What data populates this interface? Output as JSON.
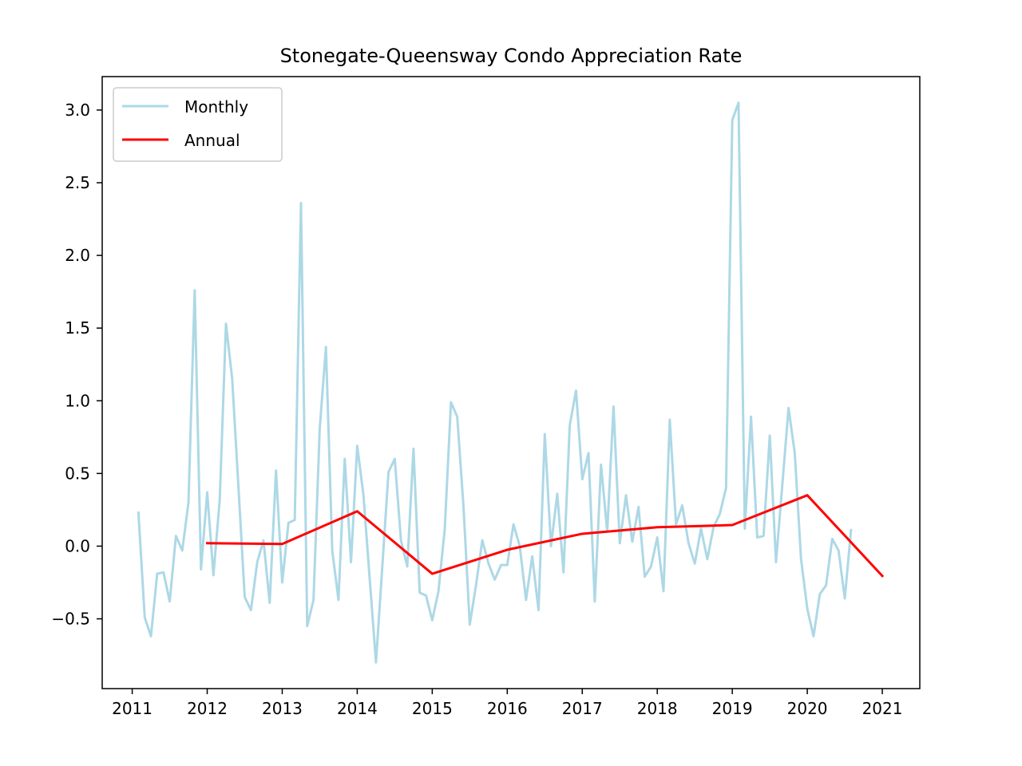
{
  "chart_data": {
    "type": "line",
    "title": "Stonegate-Queensway Condo Appreciation Rate",
    "xlabel": "",
    "ylabel": "",
    "xlim": [
      2010.6,
      2021.5
    ],
    "ylim": [
      -0.98,
      3.23
    ],
    "x_ticks": [
      2011,
      2012,
      2013,
      2014,
      2015,
      2016,
      2017,
      2018,
      2019,
      2020,
      2021
    ],
    "y_ticks": [
      -0.5,
      0.0,
      0.5,
      1.0,
      1.5,
      2.0,
      2.5,
      3.0
    ],
    "y_tick_labels": [
      "−0.5",
      "0.0",
      "0.5",
      "1.0",
      "1.5",
      "2.0",
      "2.5",
      "3.0"
    ],
    "grid": false,
    "legend_position": "top-left",
    "series": [
      {
        "name": "Monthly",
        "color": "#add8e6",
        "x": [
          2011.083,
          2011.167,
          2011.25,
          2011.333,
          2011.417,
          2011.5,
          2011.583,
          2011.667,
          2011.75,
          2011.833,
          2011.917,
          2012.0,
          2012.083,
          2012.167,
          2012.25,
          2012.333,
          2012.417,
          2012.5,
          2012.583,
          2012.667,
          2012.75,
          2012.833,
          2012.917,
          2013.0,
          2013.083,
          2013.167,
          2013.25,
          2013.333,
          2013.417,
          2013.5,
          2013.583,
          2013.667,
          2013.75,
          2013.833,
          2013.917,
          2014.0,
          2014.083,
          2014.167,
          2014.25,
          2014.333,
          2014.417,
          2014.5,
          2014.583,
          2014.667,
          2014.75,
          2014.833,
          2014.917,
          2015.0,
          2015.083,
          2015.167,
          2015.25,
          2015.333,
          2015.417,
          2015.5,
          2015.583,
          2015.667,
          2015.75,
          2015.833,
          2015.917,
          2016.0,
          2016.083,
          2016.167,
          2016.25,
          2016.333,
          2016.417,
          2016.5,
          2016.583,
          2016.667,
          2016.75,
          2016.833,
          2016.917,
          2017.0,
          2017.083,
          2017.167,
          2017.25,
          2017.333,
          2017.417,
          2017.5,
          2017.583,
          2017.667,
          2017.75,
          2017.833,
          2017.917,
          2018.0,
          2018.083,
          2018.167,
          2018.25,
          2018.333,
          2018.417,
          2018.5,
          2018.583,
          2018.667,
          2018.75,
          2018.833,
          2018.917,
          2019.0,
          2019.083,
          2019.167,
          2019.25,
          2019.333,
          2019.417,
          2019.5,
          2019.583,
          2019.667,
          2019.75,
          2019.833,
          2019.917,
          2020.0,
          2020.083,
          2020.167,
          2020.25,
          2020.333,
          2020.417,
          2020.5,
          2020.583
        ],
        "values": [
          0.23,
          -0.49,
          -0.62,
          -0.19,
          -0.18,
          -0.38,
          0.07,
          -0.03,
          0.3,
          1.76,
          -0.16,
          0.37,
          -0.2,
          0.32,
          1.53,
          1.15,
          0.4,
          -0.35,
          -0.44,
          -0.11,
          0.04,
          -0.39,
          0.52,
          -0.25,
          0.16,
          0.18,
          2.36,
          -0.55,
          -0.37,
          0.81,
          1.37,
          -0.03,
          -0.37,
          0.6,
          -0.11,
          0.69,
          0.35,
          -0.23,
          -0.8,
          -0.15,
          0.51,
          0.6,
          0.04,
          -0.14,
          0.67,
          -0.32,
          -0.34,
          -0.51,
          -0.31,
          0.12,
          0.99,
          0.89,
          0.27,
          -0.54,
          -0.27,
          0.04,
          -0.12,
          -0.23,
          -0.13,
          -0.13,
          0.15,
          0.0,
          -0.37,
          -0.07,
          -0.44,
          0.77,
          0.0,
          0.36,
          -0.18,
          0.83,
          1.07,
          0.46,
          0.64,
          -0.38,
          0.56,
          0.1,
          0.96,
          0.02,
          0.35,
          0.03,
          0.27,
          -0.21,
          -0.14,
          0.06,
          -0.31,
          0.87,
          0.15,
          0.28,
          0.02,
          -0.12,
          0.12,
          -0.09,
          0.13,
          0.22,
          0.4,
          2.93,
          3.05,
          0.12,
          0.89,
          0.06,
          0.07,
          0.76,
          -0.11,
          0.42,
          0.95,
          0.64,
          -0.09,
          -0.43,
          -0.62,
          -0.33,
          -0.27,
          0.05,
          -0.03,
          -0.36,
          0.11
        ]
      },
      {
        "name": "Annual",
        "color": "#ff0000",
        "x": [
          2012,
          2013,
          2014,
          2015,
          2016,
          2017,
          2018,
          2019,
          2020,
          2021
        ],
        "values": [
          0.02,
          0.015,
          0.24,
          -0.19,
          -0.025,
          0.085,
          0.13,
          0.145,
          0.35,
          -0.205
        ]
      }
    ]
  }
}
